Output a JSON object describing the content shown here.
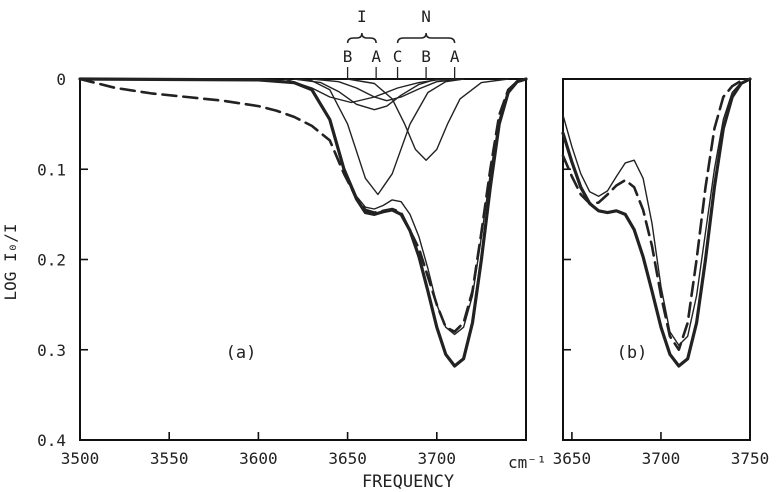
{
  "chart_data": [
    {
      "panel": "(a)",
      "type": "line",
      "xlabel": "FREQUENCY",
      "x_unit": "cm⁻¹",
      "ylabel": "LOG I₀/I",
      "xlim": [
        3500,
        3750
      ],
      "ylim": [
        0,
        0.4
      ],
      "y_inverted": true,
      "grid": false,
      "x_ticks": [
        "3500",
        "3550",
        "3600",
        "3650",
        "3700"
      ],
      "y_ticks": [
        "0",
        "0.1",
        "0.2",
        "0.3",
        "0.4"
      ],
      "band_groups": [
        {
          "label": "I",
          "bands": [
            {
              "label": "B",
              "x": 3650
            },
            {
              "label": "A",
              "x": 3666
            }
          ]
        },
        {
          "label": "N",
          "bands": [
            {
              "label": "C",
              "x": 3678
            },
            {
              "label": "B",
              "x": 3694
            },
            {
              "label": "A",
              "x": 3710
            }
          ]
        }
      ],
      "series": [
        {
          "style": "solid-bold",
          "x": [
            3500,
            3600,
            3620,
            3630,
            3640,
            3648,
            3655,
            3660,
            3665,
            3670,
            3675,
            3680,
            3685,
            3690,
            3695,
            3700,
            3705,
            3710,
            3715,
            3720,
            3725,
            3730,
            3735,
            3740,
            3745,
            3750
          ],
          "y": [
            0,
            0.001,
            0.004,
            0.012,
            0.045,
            0.1,
            0.133,
            0.148,
            0.15,
            0.147,
            0.145,
            0.15,
            0.168,
            0.197,
            0.235,
            0.275,
            0.305,
            0.318,
            0.31,
            0.27,
            0.2,
            0.12,
            0.05,
            0.015,
            0.003,
            0
          ]
        },
        {
          "style": "dashed",
          "x": [
            3500,
            3510,
            3520,
            3540,
            3560,
            3580,
            3600,
            3610,
            3620,
            3630,
            3640,
            3648,
            3655,
            3660,
            3665,
            3670,
            3675,
            3680,
            3690,
            3700,
            3705,
            3710,
            3715,
            3720,
            3725,
            3730,
            3735,
            3740,
            3745,
            3750
          ],
          "y": [
            0,
            0.005,
            0.01,
            0.016,
            0.02,
            0.024,
            0.03,
            0.035,
            0.042,
            0.052,
            0.068,
            0.105,
            0.132,
            0.145,
            0.148,
            0.146,
            0.144,
            0.148,
            0.188,
            0.25,
            0.275,
            0.28,
            0.27,
            0.235,
            0.17,
            0.1,
            0.04,
            0.012,
            0.003,
            0
          ]
        },
        {
          "style": "solid-thin",
          "x": [
            3600,
            3620,
            3630,
            3640,
            3648,
            3655,
            3660,
            3665,
            3670,
            3675,
            3680,
            3685,
            3690,
            3695,
            3700,
            3705,
            3710,
            3715,
            3720,
            3725,
            3730,
            3735,
            3740,
            3745,
            3750
          ],
          "y": [
            0.001,
            0.004,
            0.012,
            0.044,
            0.098,
            0.13,
            0.142,
            0.144,
            0.14,
            0.134,
            0.136,
            0.15,
            0.175,
            0.21,
            0.25,
            0.275,
            0.283,
            0.275,
            0.24,
            0.175,
            0.105,
            0.045,
            0.014,
            0.003,
            0
          ]
        },
        {
          "style": "solid-thin",
          "x": [
            3620,
            3630,
            3640,
            3650,
            3660,
            3667,
            3675,
            3685,
            3695,
            3705,
            3715
          ],
          "y": [
            0,
            0.002,
            0.012,
            0.05,
            0.11,
            0.128,
            0.105,
            0.05,
            0.015,
            0.003,
            0
          ]
        },
        {
          "style": "solid-thin",
          "x": [
            3615,
            3630,
            3640,
            3652,
            3665,
            3678,
            3690,
            3700,
            3712
          ],
          "y": [
            0,
            0.01,
            0.02,
            0.026,
            0.02,
            0.01,
            0.004,
            0.001,
            0
          ]
        },
        {
          "style": "solid-thin",
          "x": [
            3650,
            3665,
            3675,
            3682,
            3688,
            3694,
            3700,
            3706,
            3713,
            3725,
            3740
          ],
          "y": [
            0,
            0.005,
            0.022,
            0.05,
            0.078,
            0.09,
            0.078,
            0.05,
            0.022,
            0.004,
            0
          ]
        },
        {
          "style": "solid-thin",
          "x": [
            3620,
            3635,
            3645,
            3655,
            3665,
            3672,
            3680,
            3690,
            3700
          ],
          "y": [
            0,
            0.004,
            0.014,
            0.028,
            0.034,
            0.03,
            0.018,
            0.006,
            0
          ]
        },
        {
          "style": "solid-thin",
          "x": [
            3630,
            3645,
            3655,
            3665,
            3672,
            3680,
            3690,
            3700,
            3715
          ],
          "y": [
            0,
            0.003,
            0.01,
            0.02,
            0.024,
            0.02,
            0.011,
            0.003,
            0
          ]
        }
      ],
      "annotations": [
        "(a)"
      ]
    },
    {
      "panel": "(b)",
      "type": "line",
      "xlim": [
        3645,
        3750
      ],
      "ylim": [
        0,
        0.4
      ],
      "y_inverted": true,
      "grid": false,
      "x_ticks": [
        "3650",
        "3700",
        "3750"
      ],
      "series": [
        {
          "style": "solid-bold",
          "x": [
            3645,
            3650,
            3655,
            3660,
            3665,
            3670,
            3675,
            3680,
            3685,
            3690,
            3695,
            3700,
            3705,
            3710,
            3715,
            3720,
            3725,
            3730,
            3735,
            3740,
            3745,
            3750
          ],
          "y": [
            0.06,
            0.092,
            0.12,
            0.138,
            0.146,
            0.148,
            0.146,
            0.15,
            0.167,
            0.197,
            0.235,
            0.275,
            0.305,
            0.318,
            0.31,
            0.27,
            0.2,
            0.12,
            0.055,
            0.02,
            0.005,
            0
          ]
        },
        {
          "style": "dashed",
          "x": [
            3645,
            3650,
            3655,
            3660,
            3665,
            3670,
            3675,
            3680,
            3685,
            3690,
            3695,
            3700,
            3705,
            3710,
            3715,
            3720,
            3725,
            3730,
            3735,
            3740,
            3745,
            3750
          ],
          "y": [
            0.085,
            0.108,
            0.128,
            0.138,
            0.137,
            0.128,
            0.118,
            0.112,
            0.12,
            0.145,
            0.185,
            0.24,
            0.285,
            0.3,
            0.27,
            0.2,
            0.12,
            0.055,
            0.02,
            0.008,
            0.002,
            0
          ]
        },
        {
          "style": "solid-thin",
          "x": [
            3645,
            3650,
            3655,
            3660,
            3665,
            3670,
            3675,
            3680,
            3685,
            3690,
            3695,
            3700,
            3705,
            3710,
            3715,
            3720,
            3725,
            3730,
            3735,
            3740,
            3745,
            3750
          ],
          "y": [
            0.04,
            0.075,
            0.105,
            0.125,
            0.13,
            0.124,
            0.108,
            0.093,
            0.09,
            0.11,
            0.16,
            0.23,
            0.28,
            0.295,
            0.285,
            0.24,
            0.17,
            0.1,
            0.045,
            0.015,
            0.004,
            0
          ]
        }
      ],
      "annotations": [
        "(b)"
      ]
    }
  ]
}
